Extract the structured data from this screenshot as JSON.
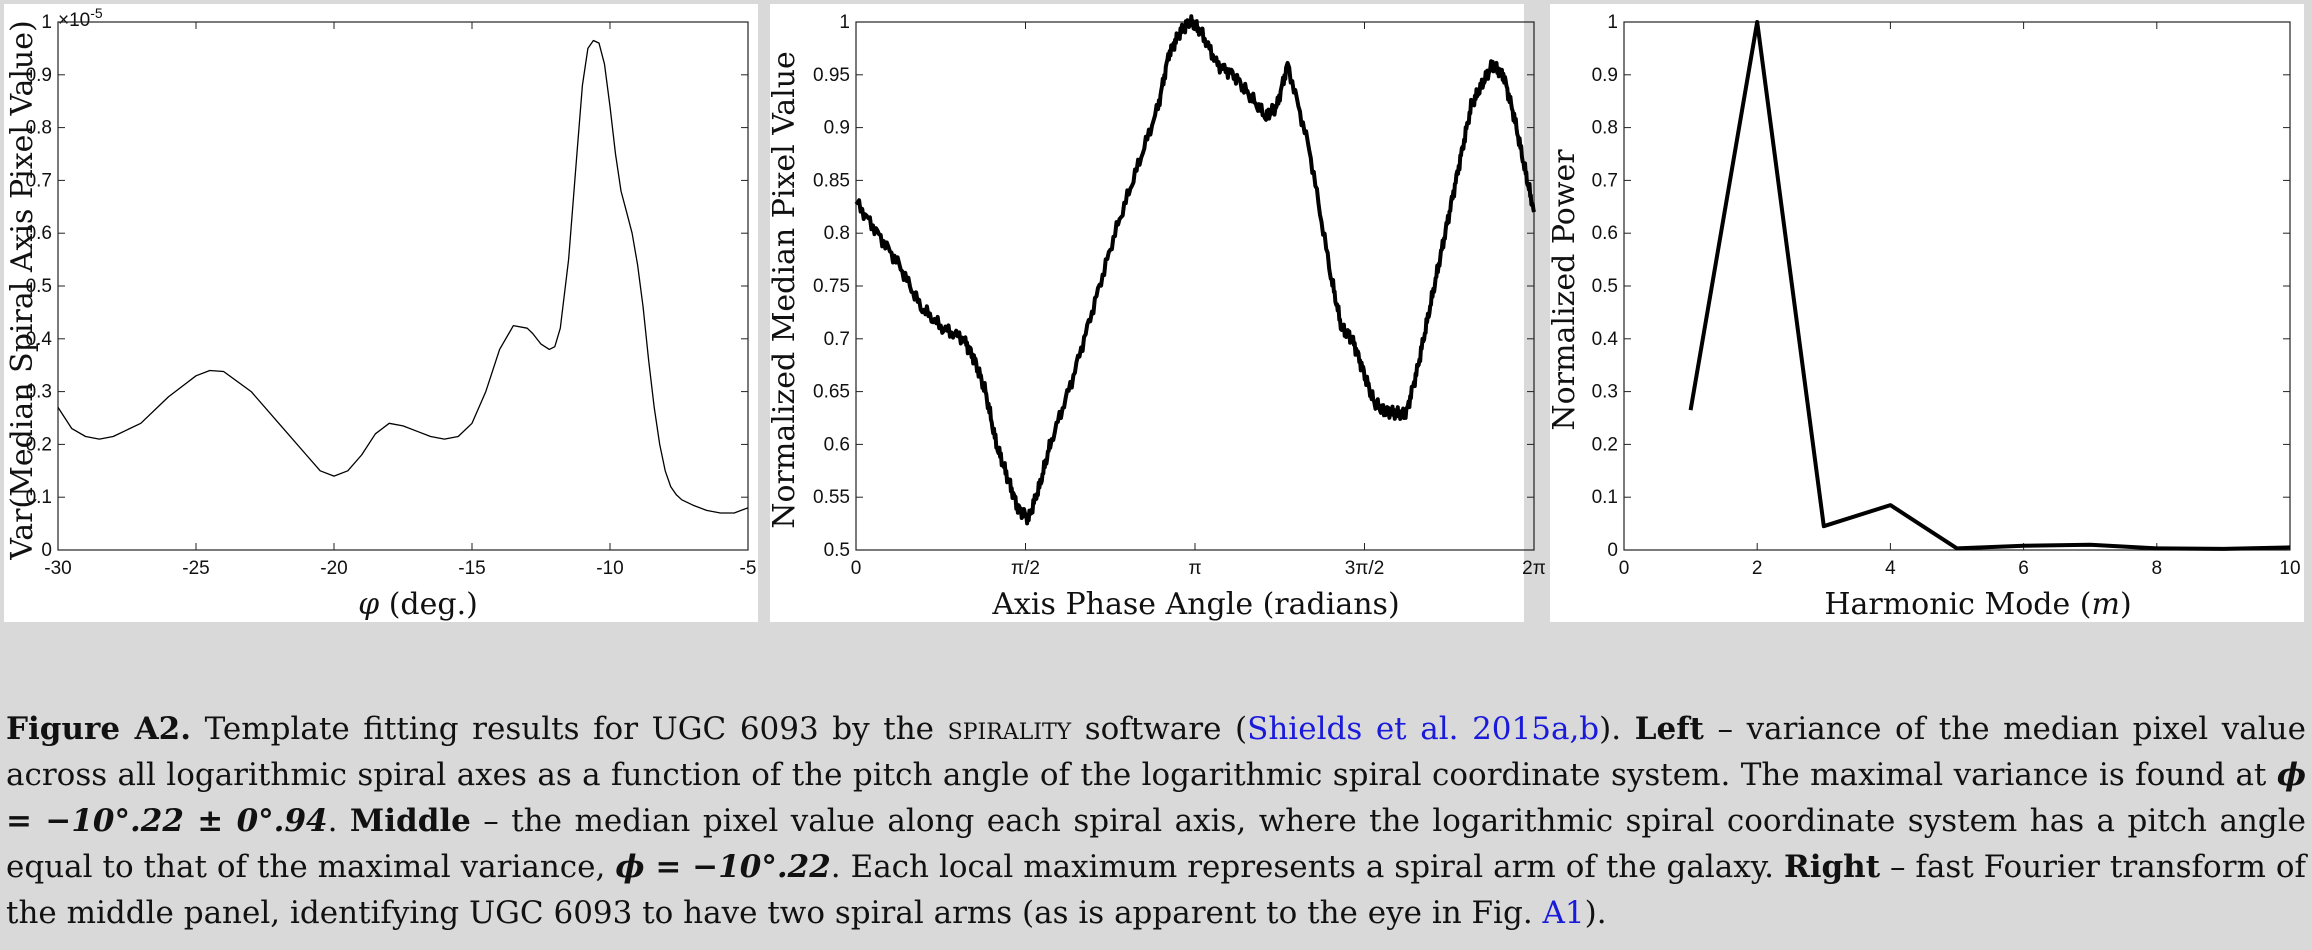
{
  "chart_data": [
    {
      "type": "line",
      "xlabel_sym": "φ",
      "xlabel_rest": " (deg.)",
      "ylabel": "Var(Median Spiral Axis Pixel Value)",
      "exponent_label": "×10",
      "exponent_power": "-5",
      "xlim": [
        -30,
        -5
      ],
      "ylim": [
        0,
        1
      ],
      "xticks": [
        "-30",
        "-25",
        "-20",
        "-15",
        "-10",
        "-5"
      ],
      "yticks": [
        "0",
        "0.1",
        "0.2",
        "0.3",
        "0.4",
        "0.5",
        "0.6",
        "0.7",
        "0.8",
        "0.9",
        "1"
      ],
      "x": [
        -30,
        -29.5,
        -29,
        -28.5,
        -28,
        -27,
        -26,
        -25,
        -24.5,
        -24,
        -23,
        -22,
        -21,
        -20.5,
        -20,
        -19.5,
        -19,
        -18.5,
        -18,
        -17.5,
        -17,
        -16.5,
        -16,
        -15.5,
        -15,
        -14.5,
        -14,
        -13.5,
        -13,
        -12.8,
        -12.5,
        -12.2,
        -12,
        -11.8,
        -11.5,
        -11.2,
        -11,
        -10.8,
        -10.6,
        -10.4,
        -10.2,
        -10,
        -9.8,
        -9.6,
        -9.4,
        -9.2,
        -9,
        -8.8,
        -8.6,
        -8.4,
        -8.2,
        -8,
        -7.8,
        -7.6,
        -7.4,
        -7,
        -6.5,
        -6,
        -5.5,
        -5
      ],
      "y": [
        0.27,
        0.23,
        0.215,
        0.21,
        0.215,
        0.24,
        0.29,
        0.33,
        0.34,
        0.338,
        0.3,
        0.24,
        0.18,
        0.15,
        0.14,
        0.15,
        0.18,
        0.22,
        0.24,
        0.235,
        0.225,
        0.215,
        0.21,
        0.215,
        0.24,
        0.3,
        0.38,
        0.425,
        0.42,
        0.41,
        0.39,
        0.38,
        0.385,
        0.42,
        0.55,
        0.75,
        0.88,
        0.95,
        0.965,
        0.96,
        0.92,
        0.84,
        0.75,
        0.68,
        0.64,
        0.6,
        0.54,
        0.46,
        0.36,
        0.27,
        0.2,
        0.15,
        0.12,
        0.105,
        0.095,
        0.085,
        0.075,
        0.07,
        0.07,
        0.08
      ]
    },
    {
      "type": "line",
      "xlabel": "Axis Phase Angle (radians)",
      "ylabel": "Normalized Median Pixel Value",
      "xlim": [
        0,
        6.2832
      ],
      "ylim": [
        0.5,
        1
      ],
      "xtick_values": [
        0,
        1.5708,
        3.1416,
        4.7124,
        6.2832
      ],
      "xticks": [
        "0",
        "π/2",
        "π",
        "3π/2",
        "2π"
      ],
      "ytick_values": [
        0.5,
        0.55,
        0.6,
        0.65,
        0.7,
        0.75,
        0.8,
        0.85,
        0.9,
        0.95,
        1
      ],
      "yticks": [
        "0.5",
        "0.55",
        "0.6",
        "0.65",
        "0.7",
        "0.75",
        "0.8",
        "0.85",
        "0.9",
        "0.95",
        "1"
      ],
      "x": [
        0,
        0.2,
        0.4,
        0.6,
        0.8,
        1.0,
        1.1,
        1.2,
        1.3,
        1.4,
        1.5,
        1.6,
        1.7,
        1.8,
        2.0,
        2.2,
        2.4,
        2.6,
        2.8,
        2.9,
        3.0,
        3.1,
        3.2,
        3.35,
        3.5,
        3.65,
        3.8,
        3.9,
        4.0,
        4.2,
        4.4,
        4.5,
        4.6,
        4.7,
        4.8,
        4.9,
        5.0,
        5.1,
        5.2,
        5.3,
        5.4,
        5.5,
        5.6,
        5.7,
        5.8,
        5.9,
        6.0,
        6.1,
        6.2,
        6.2832
      ],
      "y": [
        0.83,
        0.8,
        0.77,
        0.73,
        0.71,
        0.7,
        0.68,
        0.65,
        0.6,
        0.57,
        0.54,
        0.53,
        0.56,
        0.6,
        0.66,
        0.73,
        0.8,
        0.86,
        0.92,
        0.97,
        0.99,
        1.0,
        0.99,
        0.96,
        0.95,
        0.93,
        0.91,
        0.92,
        0.96,
        0.88,
        0.76,
        0.71,
        0.7,
        0.67,
        0.64,
        0.63,
        0.63,
        0.63,
        0.67,
        0.72,
        0.77,
        0.82,
        0.87,
        0.92,
        0.94,
        0.96,
        0.95,
        0.91,
        0.86,
        0.82
      ]
    },
    {
      "type": "line",
      "xlabel_pre": "Harmonic Mode (",
      "xlabel_sym": "m",
      "xlabel_post": ")",
      "ylabel": "Normalized Power",
      "xlim": [
        0,
        10
      ],
      "ylim": [
        0,
        1
      ],
      "xtick_values": [
        0,
        2,
        4,
        6,
        8,
        10
      ],
      "xticks": [
        "0",
        "2",
        "4",
        "6",
        "8",
        "10"
      ],
      "ytick_values": [
        0,
        0.1,
        0.2,
        0.3,
        0.4,
        0.5,
        0.6,
        0.7,
        0.8,
        0.9,
        1
      ],
      "yticks": [
        "0",
        "0.1",
        "0.2",
        "0.3",
        "0.4",
        "0.5",
        "0.6",
        "0.7",
        "0.8",
        "0.9",
        "1"
      ],
      "x": [
        1,
        2,
        3,
        4,
        5,
        6,
        7,
        8,
        9,
        10
      ],
      "y": [
        0.265,
        1.0,
        0.045,
        0.085,
        0.003,
        0.008,
        0.01,
        0.003,
        0.002,
        0.005
      ]
    }
  ],
  "caption": {
    "figure_label": "Figure A2.",
    "text1": " Template fitting results for UGC 6093 by the ",
    "software": "spirality",
    "text2": " software (",
    "cite1": "Shields et al. 2015a,b",
    "text3": "). ",
    "left_label": "Left",
    "text4": " – variance of the median pixel value across all logarithmic spiral axes as a function of the pitch angle of the logarithmic spiral coordinate system. The maximal variance is found at ",
    "math1": "ϕ = −10°.22 ± 0°.94",
    "text5": ". ",
    "middle_label": "Middle",
    "text6": " – the median pixel value along each spiral axis, where the logarithmic spiral coordinate system has a pitch angle equal to that of the maximal variance, ",
    "math2": "ϕ = −10°.22",
    "text7": ". Each local maximum represents a spiral arm of the galaxy. ",
    "right_label": "Right",
    "text8": " – fast Fourier transform of the middle panel, identifying UGC 6093 to have two spiral arms (as is apparent to the eye in Fig. ",
    "cite2": "A1",
    "text9": ")."
  }
}
